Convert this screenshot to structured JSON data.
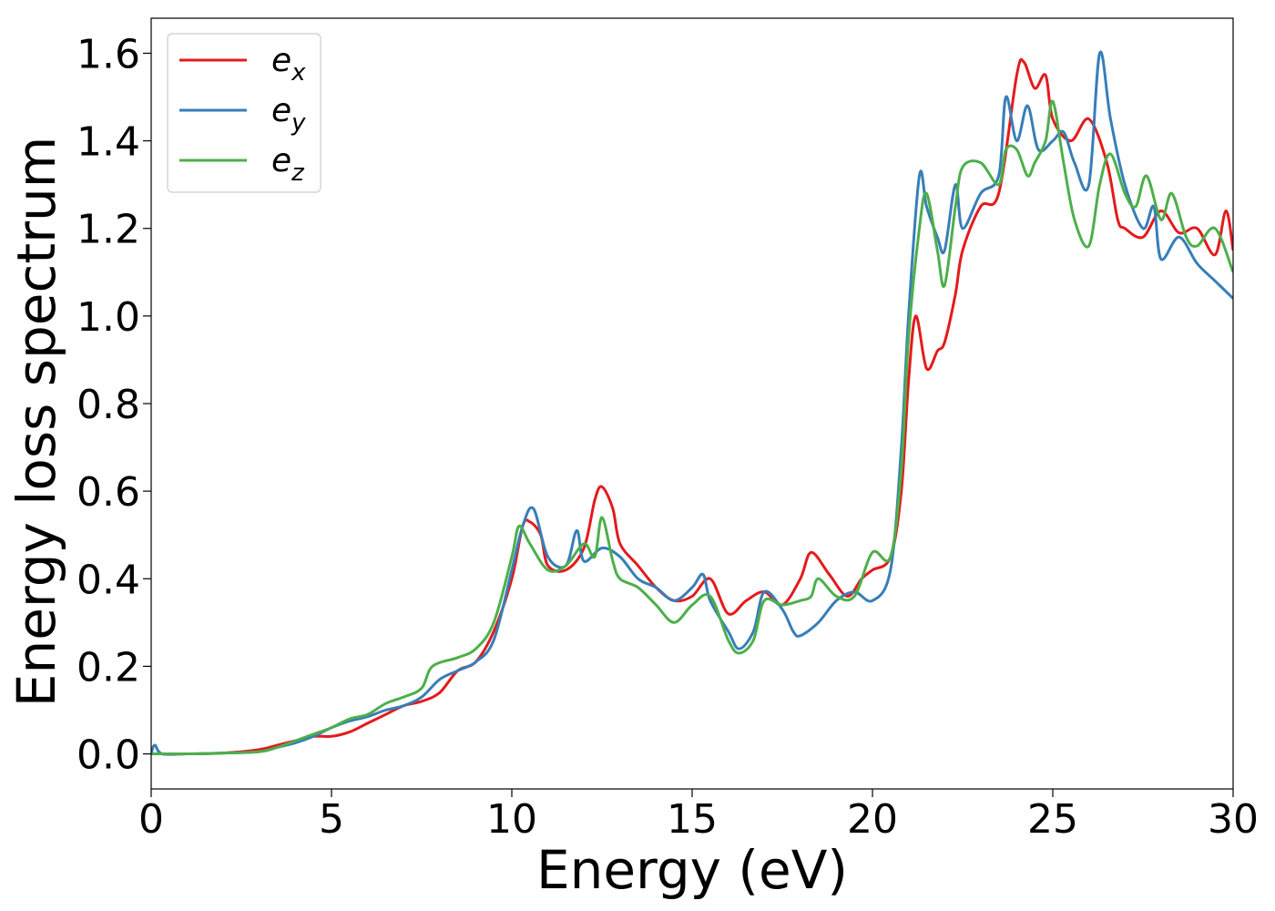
{
  "chart_data": {
    "type": "line",
    "title": "",
    "xlabel": "Energy (eV)",
    "ylabel": "Energy loss spectrum",
    "xlim": [
      0,
      30
    ],
    "ylim": [
      -0.08,
      1.68
    ],
    "xticks": [
      0,
      5,
      10,
      15,
      20,
      25,
      30
    ],
    "yticks": [
      0.0,
      0.2,
      0.4,
      0.6,
      0.8,
      1.0,
      1.2,
      1.4,
      1.6
    ],
    "xtick_labels": [
      "0",
      "5",
      "10",
      "15",
      "20",
      "25",
      "30"
    ],
    "ytick_labels": [
      "0.0",
      "0.2",
      "0.4",
      "0.6",
      "0.8",
      "1.0",
      "1.2",
      "1.4",
      "1.6"
    ],
    "grid": false,
    "legend": "upper-left",
    "series": [
      {
        "name": "e",
        "subscript": "x",
        "color": "#e41a1c",
        "points": [
          [
            0,
            0.0
          ],
          [
            1,
            0.0
          ],
          [
            2,
            0.002
          ],
          [
            3,
            0.01
          ],
          [
            3.5,
            0.02
          ],
          [
            4,
            0.03
          ],
          [
            4.5,
            0.04
          ],
          [
            5,
            0.04
          ],
          [
            5.5,
            0.05
          ],
          [
            6,
            0.07
          ],
          [
            6.5,
            0.09
          ],
          [
            7,
            0.11
          ],
          [
            7.5,
            0.12
          ],
          [
            8,
            0.14
          ],
          [
            8.5,
            0.19
          ],
          [
            9,
            0.21
          ],
          [
            9.5,
            0.28
          ],
          [
            10,
            0.4
          ],
          [
            10.3,
            0.52
          ],
          [
            10.5,
            0.53
          ],
          [
            10.8,
            0.5
          ],
          [
            11,
            0.43
          ],
          [
            11.5,
            0.42
          ],
          [
            12,
            0.47
          ],
          [
            12.3,
            0.58
          ],
          [
            12.5,
            0.61
          ],
          [
            12.8,
            0.56
          ],
          [
            13,
            0.48
          ],
          [
            13.5,
            0.43
          ],
          [
            14,
            0.38
          ],
          [
            14.5,
            0.35
          ],
          [
            15,
            0.36
          ],
          [
            15.5,
            0.4
          ],
          [
            16,
            0.32
          ],
          [
            16.5,
            0.35
          ],
          [
            17,
            0.37
          ],
          [
            17.5,
            0.34
          ],
          [
            18,
            0.4
          ],
          [
            18.3,
            0.46
          ],
          [
            18.8,
            0.41
          ],
          [
            19.3,
            0.36
          ],
          [
            19.7,
            0.4
          ],
          [
            20,
            0.42
          ],
          [
            20.5,
            0.45
          ],
          [
            20.8,
            0.6
          ],
          [
            21,
            0.85
          ],
          [
            21.2,
            1.0
          ],
          [
            21.5,
            0.88
          ],
          [
            21.8,
            0.92
          ],
          [
            22,
            0.94
          ],
          [
            22.3,
            1.05
          ],
          [
            22.5,
            1.15
          ],
          [
            23,
            1.25
          ],
          [
            23.5,
            1.28
          ],
          [
            24,
            1.55
          ],
          [
            24.2,
            1.58
          ],
          [
            24.5,
            1.52
          ],
          [
            24.8,
            1.55
          ],
          [
            25,
            1.45
          ],
          [
            25.5,
            1.4
          ],
          [
            26,
            1.45
          ],
          [
            26.5,
            1.35
          ],
          [
            26.8,
            1.22
          ],
          [
            27,
            1.2
          ],
          [
            27.5,
            1.18
          ],
          [
            28,
            1.24
          ],
          [
            28.5,
            1.19
          ],
          [
            29,
            1.2
          ],
          [
            29.5,
            1.14
          ],
          [
            29.8,
            1.24
          ],
          [
            30,
            1.15
          ]
        ]
      },
      {
        "name": "e",
        "subscript": "y",
        "color": "#377eb8",
        "points": [
          [
            0,
            0.0
          ],
          [
            0.1,
            0.02
          ],
          [
            0.3,
            0.0
          ],
          [
            1,
            0.0
          ],
          [
            2,
            0.002
          ],
          [
            3,
            0.005
          ],
          [
            3.5,
            0.015
          ],
          [
            4,
            0.025
          ],
          [
            4.5,
            0.04
          ],
          [
            5,
            0.06
          ],
          [
            5.5,
            0.075
          ],
          [
            6,
            0.085
          ],
          [
            6.5,
            0.1
          ],
          [
            7,
            0.11
          ],
          [
            7.5,
            0.13
          ],
          [
            8,
            0.17
          ],
          [
            8.5,
            0.19
          ],
          [
            9,
            0.21
          ],
          [
            9.5,
            0.26
          ],
          [
            10,
            0.42
          ],
          [
            10.3,
            0.52
          ],
          [
            10.6,
            0.56
          ],
          [
            11,
            0.45
          ],
          [
            11.5,
            0.43
          ],
          [
            11.8,
            0.51
          ],
          [
            12,
            0.44
          ],
          [
            12.5,
            0.47
          ],
          [
            13,
            0.45
          ],
          [
            13.5,
            0.4
          ],
          [
            14,
            0.38
          ],
          [
            14.5,
            0.35
          ],
          [
            15,
            0.38
          ],
          [
            15.3,
            0.41
          ],
          [
            15.5,
            0.35
          ],
          [
            16,
            0.28
          ],
          [
            16.3,
            0.24
          ],
          [
            16.7,
            0.28
          ],
          [
            17,
            0.37
          ],
          [
            17.5,
            0.33
          ],
          [
            17.8,
            0.28
          ],
          [
            18,
            0.27
          ],
          [
            18.5,
            0.3
          ],
          [
            19,
            0.35
          ],
          [
            19.5,
            0.37
          ],
          [
            20,
            0.35
          ],
          [
            20.5,
            0.42
          ],
          [
            20.8,
            0.7
          ],
          [
            21,
            1.0
          ],
          [
            21.3,
            1.32
          ],
          [
            21.5,
            1.25
          ],
          [
            21.8,
            1.18
          ],
          [
            22,
            1.15
          ],
          [
            22.3,
            1.3
          ],
          [
            22.5,
            1.2
          ],
          [
            23,
            1.28
          ],
          [
            23.5,
            1.32
          ],
          [
            23.7,
            1.5
          ],
          [
            24,
            1.4
          ],
          [
            24.3,
            1.48
          ],
          [
            24.6,
            1.38
          ],
          [
            25,
            1.4
          ],
          [
            25.3,
            1.42
          ],
          [
            25.6,
            1.35
          ],
          [
            26,
            1.3
          ],
          [
            26.3,
            1.6
          ],
          [
            26.6,
            1.45
          ],
          [
            27,
            1.3
          ],
          [
            27.5,
            1.2
          ],
          [
            27.8,
            1.25
          ],
          [
            28,
            1.13
          ],
          [
            28.5,
            1.18
          ],
          [
            29,
            1.12
          ],
          [
            29.5,
            1.08
          ],
          [
            30,
            1.04
          ]
        ]
      },
      {
        "name": "e",
        "subscript": "z",
        "color": "#4daf4a",
        "points": [
          [
            0,
            0.0
          ],
          [
            1,
            0.0
          ],
          [
            2,
            0.002
          ],
          [
            3,
            0.005
          ],
          [
            3.5,
            0.015
          ],
          [
            4,
            0.03
          ],
          [
            4.5,
            0.045
          ],
          [
            5,
            0.06
          ],
          [
            5.5,
            0.08
          ],
          [
            6,
            0.09
          ],
          [
            6.5,
            0.115
          ],
          [
            7,
            0.13
          ],
          [
            7.5,
            0.15
          ],
          [
            7.8,
            0.2
          ],
          [
            8.5,
            0.22
          ],
          [
            9,
            0.24
          ],
          [
            9.5,
            0.3
          ],
          [
            10,
            0.45
          ],
          [
            10.2,
            0.52
          ],
          [
            10.5,
            0.48
          ],
          [
            11,
            0.42
          ],
          [
            11.5,
            0.43
          ],
          [
            12,
            0.48
          ],
          [
            12.3,
            0.45
          ],
          [
            12.5,
            0.54
          ],
          [
            12.8,
            0.44
          ],
          [
            13,
            0.4
          ],
          [
            13.5,
            0.38
          ],
          [
            14,
            0.34
          ],
          [
            14.5,
            0.3
          ],
          [
            15,
            0.34
          ],
          [
            15.5,
            0.36
          ],
          [
            16,
            0.26
          ],
          [
            16.3,
            0.23
          ],
          [
            16.7,
            0.26
          ],
          [
            17,
            0.35
          ],
          [
            17.5,
            0.34
          ],
          [
            18,
            0.35
          ],
          [
            18.3,
            0.36
          ],
          [
            18.5,
            0.4
          ],
          [
            19,
            0.36
          ],
          [
            19.5,
            0.36
          ],
          [
            20,
            0.46
          ],
          [
            20.5,
            0.45
          ],
          [
            20.8,
            0.65
          ],
          [
            21,
            0.95
          ],
          [
            21.3,
            1.2
          ],
          [
            21.5,
            1.28
          ],
          [
            21.8,
            1.15
          ],
          [
            22,
            1.07
          ],
          [
            22.3,
            1.25
          ],
          [
            22.5,
            1.34
          ],
          [
            23,
            1.35
          ],
          [
            23.5,
            1.3
          ],
          [
            23.7,
            1.38
          ],
          [
            24,
            1.38
          ],
          [
            24.3,
            1.32
          ],
          [
            24.5,
            1.35
          ],
          [
            24.8,
            1.4
          ],
          [
            25,
            1.49
          ],
          [
            25.3,
            1.35
          ],
          [
            25.6,
            1.22
          ],
          [
            26,
            1.16
          ],
          [
            26.3,
            1.3
          ],
          [
            26.6,
            1.37
          ],
          [
            27,
            1.28
          ],
          [
            27.3,
            1.25
          ],
          [
            27.6,
            1.32
          ],
          [
            28,
            1.22
          ],
          [
            28.3,
            1.28
          ],
          [
            28.7,
            1.18
          ],
          [
            29,
            1.16
          ],
          [
            29.5,
            1.2
          ],
          [
            30,
            1.1
          ]
        ]
      }
    ]
  }
}
